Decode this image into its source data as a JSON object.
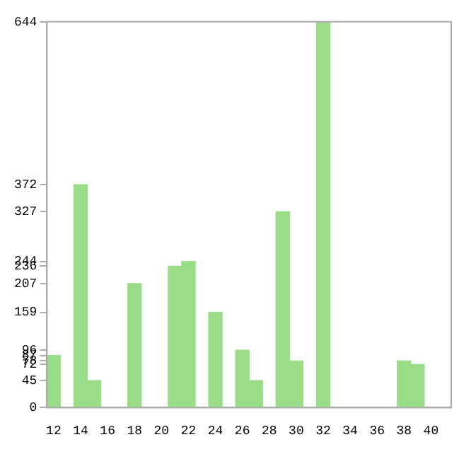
{
  "chart_data": {
    "type": "bar",
    "categories": [
      "12",
      null,
      "14",
      null,
      "16",
      null,
      "18",
      null,
      "20",
      null,
      "22",
      null,
      "24",
      null,
      "26",
      null,
      "28",
      null,
      "30",
      null,
      "32",
      null,
      "34",
      null,
      "36",
      null,
      "38",
      null,
      "40",
      null
    ],
    "values": [
      87,
      0,
      372,
      45,
      0,
      0,
      207,
      0,
      0,
      236,
      244,
      0,
      159,
      0,
      96,
      45,
      0,
      327,
      78,
      0,
      644,
      0,
      0,
      0,
      0,
      0,
      78,
      72,
      0,
      0
    ],
    "color": "#99dd88",
    "ylim": [
      0,
      644
    ],
    "yticks": [
      0,
      45,
      72,
      78,
      87,
      96,
      159,
      207,
      236,
      244,
      327,
      372,
      644
    ],
    "grid": false,
    "legend": false
  }
}
